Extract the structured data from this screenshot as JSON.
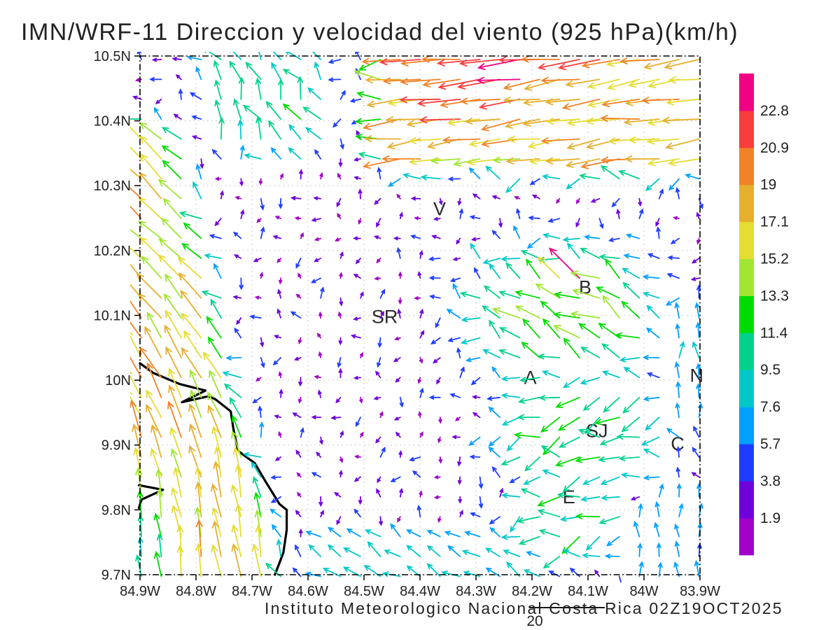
{
  "title": "IMN/WRF-11 Direccion y velocidad del viento (925 hPa)(km/h)",
  "footer": {
    "credit": "Instituto Meteorologico Nacional Costa Rica 02Z19OCT2025",
    "page_number": "20"
  },
  "colors": {
    "text": "#222222",
    "grid": "#bdbdbd",
    "frame": "#000000",
    "coast": "#000000",
    "city_label": "#2b2b2b"
  },
  "chart_data": {
    "type": "quiver",
    "title": "IMN/WRF-11 Direccion y velocidad del viento (925 hPa)(km/h)",
    "variable": "Direccion y velocidad del viento",
    "level": "925 hPa",
    "units": "km/h",
    "model": "IMN/WRF-11",
    "valid_time": "02Z19OCT2025",
    "grid_on": true,
    "legend_position": "right",
    "lon_range_w": [
      84.9,
      83.9
    ],
    "lat_range_n": [
      9.7,
      10.5
    ],
    "x_ticks": [
      {
        "value": 84.9,
        "label": "84.9W"
      },
      {
        "value": 84.8,
        "label": "84.8W"
      },
      {
        "value": 84.7,
        "label": "84.7W"
      },
      {
        "value": 84.6,
        "label": "84.6W"
      },
      {
        "value": 84.5,
        "label": "84.5W"
      },
      {
        "value": 84.4,
        "label": "84.4W"
      },
      {
        "value": 84.3,
        "label": "84.3W"
      },
      {
        "value": 84.2,
        "label": "84.2W"
      },
      {
        "value": 84.1,
        "label": "84.1W"
      },
      {
        "value": 84.0,
        "label": "84W"
      },
      {
        "value": 83.9,
        "label": "83.9W"
      }
    ],
    "y_ticks": [
      {
        "value": 10.5,
        "label": "10.5N"
      },
      {
        "value": 10.4,
        "label": "10.4N"
      },
      {
        "value": 10.3,
        "label": "10.3N"
      },
      {
        "value": 10.2,
        "label": "10.2N"
      },
      {
        "value": 10.1,
        "label": "10.1N"
      },
      {
        "value": 10.0,
        "label": "10N"
      },
      {
        "value": 9.9,
        "label": "9.9N"
      },
      {
        "value": 9.8,
        "label": "9.8N"
      },
      {
        "value": 9.7,
        "label": "9.7N"
      }
    ],
    "speed_levels": [
      1.9,
      3.8,
      5.7,
      7.6,
      9.5,
      11.4,
      13.3,
      15.2,
      17.1,
      19,
      20.9,
      22.8
    ],
    "speed_colors": [
      "#A000C8",
      "#6E00DC",
      "#1E3CFF",
      "#00A0FF",
      "#00C8C8",
      "#00D28C",
      "#00DC00",
      "#A0E632",
      "#E6DC32",
      "#E6AF2D",
      "#F08228",
      "#FA3C3C",
      "#F00082"
    ],
    "grid": {
      "cols": 29,
      "rows": 27
    },
    "cities": [
      {
        "label": "V",
        "lon": 84.365,
        "lat": 10.264
      },
      {
        "label": "B",
        "lon": 84.105,
        "lat": 10.143
      },
      {
        "label": "SR",
        "lon": 84.463,
        "lat": 10.098
      },
      {
        "label": "A",
        "lon": 84.203,
        "lat": 10.004
      },
      {
        "label": "SJ",
        "lon": 84.084,
        "lat": 9.922
      },
      {
        "label": "C",
        "lon": 83.94,
        "lat": 9.902
      },
      {
        "label": "E",
        "lon": 84.134,
        "lat": 9.82
      },
      {
        "label": "N",
        "lon": 83.906,
        "lat": 10.007
      }
    ],
    "coastline_lonlat": [
      [
        84.9,
        10.026
      ],
      [
        84.876,
        10.011
      ],
      [
        84.829,
        9.994
      ],
      [
        84.783,
        9.984
      ],
      [
        84.825,
        9.966
      ],
      [
        84.779,
        9.975
      ],
      [
        84.766,
        9.971
      ],
      [
        84.738,
        9.952
      ],
      [
        84.733,
        9.924
      ],
      [
        84.725,
        9.891
      ],
      [
        84.695,
        9.872
      ],
      [
        84.676,
        9.844
      ],
      [
        84.651,
        9.809
      ],
      [
        84.638,
        9.8
      ],
      [
        84.638,
        9.769
      ],
      [
        84.644,
        9.734
      ],
      [
        84.659,
        9.7
      ]
    ],
    "coast_spit_lonlat": [
      [
        84.902,
        9.838
      ],
      [
        84.859,
        9.831
      ],
      [
        84.897,
        9.816
      ],
      [
        84.902,
        9.803
      ]
    ],
    "wind_field_model": {
      "seed": 11,
      "base": {
        "speed_min": 1.6,
        "speed_rand": 3.4,
        "speed_pow": 1.7,
        "dir_center": 175,
        "dir_spread": 230
      },
      "regions": [
        {
          "name": "pacific-coastal-jet",
          "kind": "coastband",
          "lonBase": 84.6,
          "lonPerLat": 0.26,
          "edge": 0.1,
          "deep": 0.24,
          "topLat": 10.43,
          "topFade": 0.07,
          "spdMin": 13.5,
          "spdSlope": 5.5,
          "dirBot": 99,
          "dirTop": 136,
          "dirLat0": 9.78,
          "dirLat1": 10.2,
          "spread": 7
        },
        {
          "name": "northern-easterly-jet",
          "kind": "topjet",
          "lat0": 10.29,
          "latFade": 0.07,
          "lon0": 84.52,
          "lonFade": 0.1,
          "spd0": 15,
          "spd1": 2.5,
          "dir": 187,
          "spread": 9
        },
        {
          "name": "northwest-moderate",
          "kind": "box",
          "latMin": 10.31,
          "latFade": 0.07,
          "lonMin": 84.52,
          "lonMax": 84.82,
          "lonFade": 0.08,
          "spd": 10,
          "dir": 118,
          "spread": 32
        },
        {
          "name": "east-central-flow",
          "kind": "gauss",
          "c": [
            84.13,
            10.1
          ],
          "s": [
            0.13,
            0.085
          ],
          "spd": 13,
          "dir": 152,
          "spread": 28
        },
        {
          "name": "san-jose-patch",
          "kind": "gauss",
          "c": [
            84.1,
            9.925
          ],
          "s": [
            0.12,
            0.08
          ],
          "spd": 11.5,
          "dir": 190,
          "spread": 42
        },
        {
          "name": "southeast-patch",
          "kind": "gauss",
          "c": [
            84.13,
            9.79
          ],
          "s": [
            0.09,
            0.06
          ],
          "spd": 10.5,
          "dir": 200,
          "spread": 48
        },
        {
          "name": "south-central-band",
          "kind": "box",
          "latMax": 9.79,
          "latFade": 0.05,
          "lonMin": 84.12,
          "lonMax": 84.66,
          "lonFade": 0.1,
          "spd": 8.2,
          "dir": 148,
          "spread": 22
        },
        {
          "name": "southeast-corner-up",
          "kind": "box",
          "latMax": 9.87,
          "latFade": 0.08,
          "lonMax": 84.07,
          "lonFade": 0.07,
          "spd": 6.6,
          "dir": 88,
          "spread": 20
        },
        {
          "name": "east-edge-up",
          "kind": "gauss",
          "c": [
            83.925,
            10.02
          ],
          "s": [
            0.045,
            0.1
          ],
          "spd": 7,
          "dir": 95,
          "spread": 22
        }
      ],
      "spikes": [
        {
          "c": [
            84.25,
            10.48
          ],
          "s": [
            0.13,
            0.045
          ],
          "add": 5
        },
        {
          "c": [
            84.43,
            10.35
          ],
          "s": [
            0.03,
            0.015
          ],
          "add": 7
        },
        {
          "c": [
            84.06,
            10.33
          ],
          "s": [
            0.05,
            0.02
          ],
          "add": 4
        },
        {
          "c": [
            84.28,
            10.175
          ],
          "s": [
            0.012,
            0.008
          ],
          "add": 16,
          "dir": 180
        },
        {
          "c": [
            84.12,
            10.155
          ],
          "s": [
            0.02,
            0.012
          ],
          "add": 10,
          "dir": 140
        }
      ],
      "arrow_style": {
        "length_base": 3,
        "length_per_unit": 2.55,
        "max_length": 60,
        "head_len": 9.5,
        "head_angle_deg": 26,
        "stroke_width": 1.8
      }
    }
  }
}
